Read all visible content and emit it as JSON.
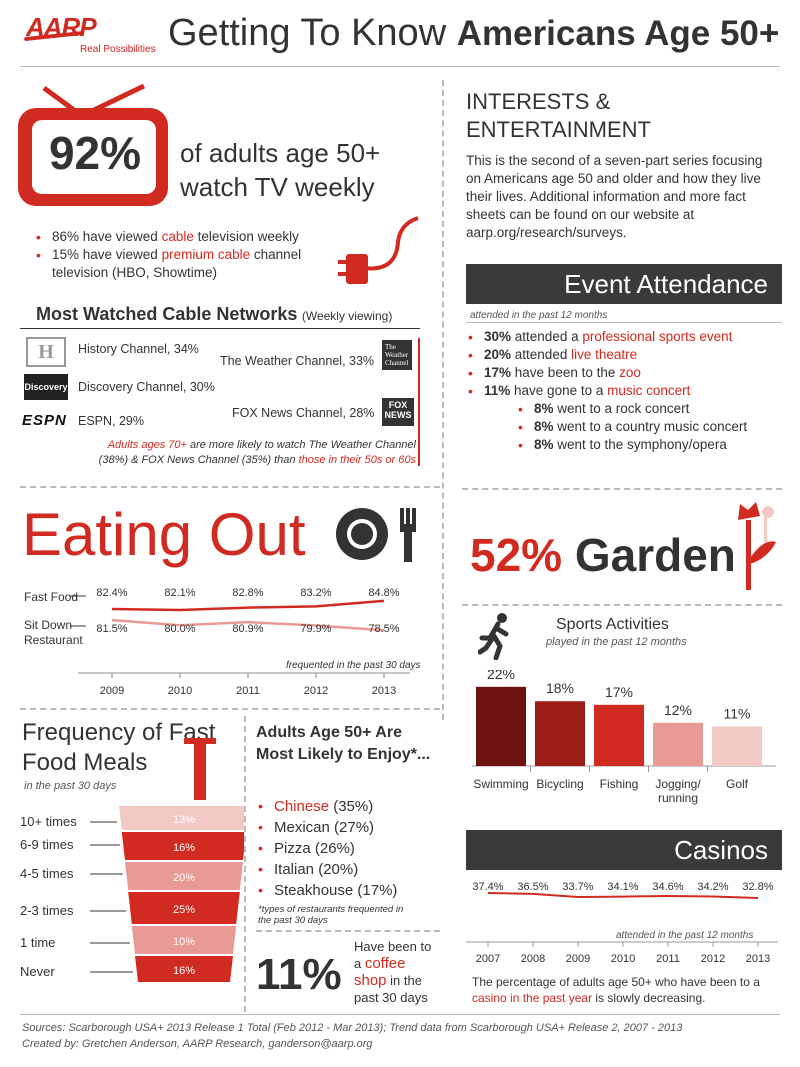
{
  "header": {
    "logo": "AARP",
    "tagline": "Real Possibilities",
    "title_light": "Getting To Know ",
    "title_bold": "Americans Age 50+"
  },
  "tv": {
    "stat": "92%",
    "text_line1": "of adults age 50+",
    "text_line2": "watch TV weekly",
    "bullets": [
      {
        "pre": "86% have viewed ",
        "hl": "cable",
        "post": " television weekly"
      },
      {
        "pre": "15% have viewed ",
        "hl": "premium cable",
        "post": " channel television (HBO, Showtime)"
      }
    ]
  },
  "networks": {
    "title": "Most Watched Cable Networks",
    "subtitle": "(Weekly viewing)",
    "left": [
      "History Channel, 34%",
      "Discovery Channel, 30%",
      "ESPN, 29%"
    ],
    "right": [
      "The Weather Channel, 33%",
      "FOX News Channel, 28%"
    ],
    "note_hl1": "Adults ages 70+",
    "note_mid": " are more likely to watch The Weather Channel (38%) & FOX News Channel (35%) than ",
    "note_hl2": "those in their 50s or 60s",
    "logos": [
      "History",
      "Discovery",
      "ESPN",
      "The Weather Channel",
      "FOX NEWS channel"
    ]
  },
  "intro": {
    "title_line1": "INTERESTS &",
    "title_line2": "ENTERTAINMENT",
    "body": "This is the second of a seven-part series focusing on Americans age 50 and older and how they live their lives. Additional information and more fact sheets can be found on our website at aarp.org/research/surveys."
  },
  "events": {
    "title": "Event Attendance",
    "subtitle": "attended in the past 12 months",
    "items": [
      {
        "pct": "30%",
        "pre": " attended a ",
        "hl": "professional sports event"
      },
      {
        "pct": "20%",
        "pre": " attended ",
        "hl": "live theatre"
      },
      {
        "pct": "17%",
        "pre": " have been to the ",
        "hl": "zoo"
      },
      {
        "pct": "11%",
        "pre": " have gone to a ",
        "hl": "music concert"
      }
    ],
    "sub_items": [
      {
        "pct": "8%",
        "text": " went to a rock concert"
      },
      {
        "pct": "8%",
        "text": " went to a country music concert"
      },
      {
        "pct": "8%",
        "text": " went to the symphony/opera"
      }
    ]
  },
  "eating": {
    "title": "Eating Out",
    "note": "frequented in the past 30 days",
    "row_labels": [
      "Fast Food",
      "Sit Down",
      "Restaurant"
    ]
  },
  "garden": {
    "pct": "52%",
    "word": "Garden"
  },
  "sports": {
    "title": "Sports Activities",
    "subtitle": "played in the past 12 months"
  },
  "casinos": {
    "title": "Casinos",
    "note": "attended in the past 12 months",
    "caption_pre": "The percentage of adults age 50+ who have been to a ",
    "caption_hl": "casino in the past year",
    "caption_post": " is slowly decreasing."
  },
  "fastfood": {
    "title_line1": "Frequency of Fast",
    "title_line2": "Food Meals",
    "subtitle": "in the past 30 days",
    "rows": [
      {
        "label": "10+ times",
        "pct": "13%"
      },
      {
        "label": "6-9 times",
        "pct": "16%"
      },
      {
        "label": "4-5 times",
        "pct": "20%"
      },
      {
        "label": "2-3 times",
        "pct": "25%"
      },
      {
        "label": "1 time",
        "pct": "10%"
      },
      {
        "label": "Never",
        "pct": "16%"
      }
    ]
  },
  "cuisine": {
    "title": "Adults Age 50+ Are Most Likely to Enjoy*...",
    "items": [
      {
        "name": "Chinese",
        "pct": " (35%)",
        "highlight": true
      },
      {
        "name": "Mexican",
        "pct": " (27%)",
        "highlight": false
      },
      {
        "name": "Pizza",
        "pct": " (26%)",
        "highlight": false
      },
      {
        "name": "Italian",
        "pct": " (20%)",
        "highlight": false
      },
      {
        "name": "Steakhouse",
        "pct": " (17%)",
        "highlight": false
      }
    ],
    "footnote": "*types of restaurants frequented in the past 30 days"
  },
  "coffee": {
    "stat": "11%",
    "pre": "Have been to a ",
    "hl": "coffee shop",
    "post": " in the past 30 days"
  },
  "footer": {
    "sources": "Sources: Scarborough USA+ 2013 Release 1 Total (Feb 2012 - Mar 2013); Trend data from Scarborough USA+ Release 2, 2007 - 2013",
    "credit": "Created by: Gretchen Anderson, AARP Research, ganderson@aarp.org"
  },
  "colors": {
    "accent": "#d12a20",
    "dark": "#3a3a3a"
  },
  "chart_data": [
    {
      "type": "line",
      "title": "Eating Out",
      "x": [
        "2009",
        "2010",
        "2011",
        "2012",
        "2013"
      ],
      "series": [
        {
          "name": "Fast Food",
          "values": [
            82.4,
            82.1,
            82.8,
            83.2,
            84.8
          ],
          "labels": [
            "82.4%",
            "82.1%",
            "82.8%",
            "83.2%",
            "84.8%"
          ]
        },
        {
          "name": "Sit Down Restaurant",
          "values": [
            81.5,
            80.0,
            80.9,
            79.9,
            78.5
          ],
          "labels": [
            "81.5%",
            "80.0%",
            "80.9%",
            "79.9%",
            "78.5%"
          ]
        }
      ]
    },
    {
      "type": "bar",
      "title": "Sports Activities",
      "categories": [
        "Swimming",
        "Bicycling",
        "Fishing",
        "Jogging/ running",
        "Golf"
      ],
      "values": [
        22,
        18,
        17,
        12,
        11
      ],
      "labels": [
        "22%",
        "18%",
        "17%",
        "12%",
        "11%"
      ],
      "colors": [
        "#6e1410",
        "#9c1c16",
        "#d12a20",
        "#e99a96",
        "#f3c9c6"
      ]
    },
    {
      "type": "line",
      "title": "Casinos",
      "x": [
        "2007",
        "2008",
        "2009",
        "2010",
        "2011",
        "2012",
        "2013"
      ],
      "values": [
        37.4,
        36.5,
        33.7,
        34.1,
        34.6,
        34.2,
        32.8
      ],
      "labels": [
        "37.4%",
        "36.5%",
        "33.7%",
        "34.1%",
        "34.6%",
        "34.2%",
        "32.8%"
      ]
    },
    {
      "type": "bar",
      "title": "Frequency of Fast Food Meals",
      "categories": [
        "10+ times",
        "6-9 times",
        "4-5 times",
        "2-3 times",
        "1 time",
        "Never"
      ],
      "values": [
        13,
        16,
        20,
        25,
        10,
        16
      ]
    }
  ]
}
